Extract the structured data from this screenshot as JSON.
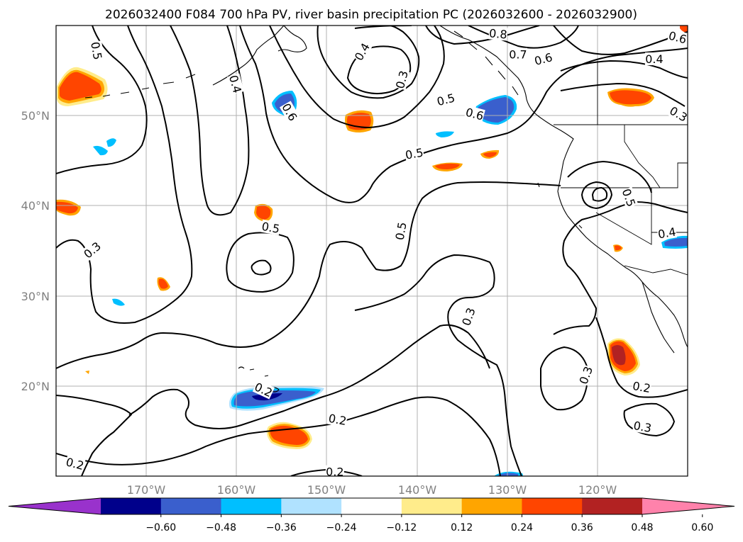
{
  "title": "2026032400 F084 700 hPa PV, river basin precipitation PC (2026032600 - 2026032900)",
  "chart_data": {
    "type": "map",
    "projection": "PlateCarree",
    "lon_range": [
      -180,
      -110
    ],
    "lat_range": [
      10,
      60
    ],
    "lat_ticks": [
      {
        "lat": 50,
        "label": "50°N"
      },
      {
        "lat": 40,
        "label": "40°N"
      },
      {
        "lat": 30,
        "label": "30°N"
      },
      {
        "lat": 20,
        "label": "20°N"
      }
    ],
    "lon_ticks": [
      {
        "lon": -170,
        "label": "170°W"
      },
      {
        "lon": -160,
        "label": "160°W"
      },
      {
        "lon": -150,
        "label": "150°W"
      },
      {
        "lon": -140,
        "label": "140°W"
      },
      {
        "lon": -130,
        "label": "130°W"
      },
      {
        "lon": -120,
        "label": "120°W"
      }
    ],
    "pv_contour_labels": [
      {
        "text": "0.5",
        "lon": -175.5,
        "lat": 57.2,
        "rot": 80
      },
      {
        "text": "0.4",
        "lon": -160.1,
        "lat": 53.5,
        "rot": 75
      },
      {
        "text": "0.6",
        "lon": -154.1,
        "lat": 50.4,
        "rot": 60
      },
      {
        "text": "0.4",
        "lon": -146.1,
        "lat": 57.1,
        "rot": -60
      },
      {
        "text": "0.3",
        "lon": -141.7,
        "lat": 54.0,
        "rot": -75
      },
      {
        "text": "0.8",
        "lon": -131.0,
        "lat": 59.1,
        "rot": 5
      },
      {
        "text": "0.7",
        "lon": -128.8,
        "lat": 56.8,
        "rot": 0
      },
      {
        "text": "0.6",
        "lon": -126.0,
        "lat": 56.3,
        "rot": -15
      },
      {
        "text": "0.6",
        "lon": -111.1,
        "lat": 58.7,
        "rot": 15
      },
      {
        "text": "0.4",
        "lon": -113.7,
        "lat": 56.3,
        "rot": 0
      },
      {
        "text": "0.5",
        "lon": -136.8,
        "lat": 51.8,
        "rot": -15
      },
      {
        "text": "0.6",
        "lon": -133.6,
        "lat": 50.2,
        "rot": 15
      },
      {
        "text": "0.3",
        "lon": -111.0,
        "lat": 50.2,
        "rot": 30
      },
      {
        "text": "0.5",
        "lon": -140.3,
        "lat": 45.8,
        "rot": -10
      },
      {
        "text": "0.5",
        "lon": -116.5,
        "lat": 40.9,
        "rot": 70
      },
      {
        "text": "0.4",
        "lon": -112.3,
        "lat": 37.0,
        "rot": -10
      },
      {
        "text": "0.5",
        "lon": -141.8,
        "lat": 37.2,
        "rot": -80
      },
      {
        "text": "0.5",
        "lon": -156.2,
        "lat": 37.6,
        "rot": 10
      },
      {
        "text": "0.3",
        "lon": -176.0,
        "lat": 35.1,
        "rot": -40
      },
      {
        "text": "0.3",
        "lon": -134.3,
        "lat": 27.7,
        "rot": -70
      },
      {
        "text": "0.3",
        "lon": -121.3,
        "lat": 21.2,
        "rot": -70
      },
      {
        "text": "0.2",
        "lon": -157.0,
        "lat": 19.6,
        "rot": 25
      },
      {
        "text": "0.2",
        "lon": -148.8,
        "lat": 16.3,
        "rot": 10
      },
      {
        "text": "0.2",
        "lon": -115.1,
        "lat": 19.9,
        "rot": 10
      },
      {
        "text": "0.3",
        "lon": -115.0,
        "lat": 15.5,
        "rot": 10
      },
      {
        "text": "0.2",
        "lon": -177.9,
        "lat": 11.4,
        "rot": 15
      },
      {
        "text": "0.2",
        "lon": -149.1,
        "lat": 10.5,
        "rot": 0
      }
    ],
    "colorbar": {
      "ticks": [
        "−0.60",
        "−0.48",
        "−0.36",
        "−0.24",
        "−0.12",
        "0.12",
        "0.24",
        "0.36",
        "0.48",
        "0.60"
      ],
      "colors": [
        "#9932cc",
        "#00008b",
        "#3a5fcd",
        "#00bfff",
        "#b0e2ff",
        "#ffffff",
        "#ffec8b",
        "#ffa500",
        "#ff4500",
        "#b22222",
        "#ff82ab"
      ],
      "extend": "both"
    }
  }
}
